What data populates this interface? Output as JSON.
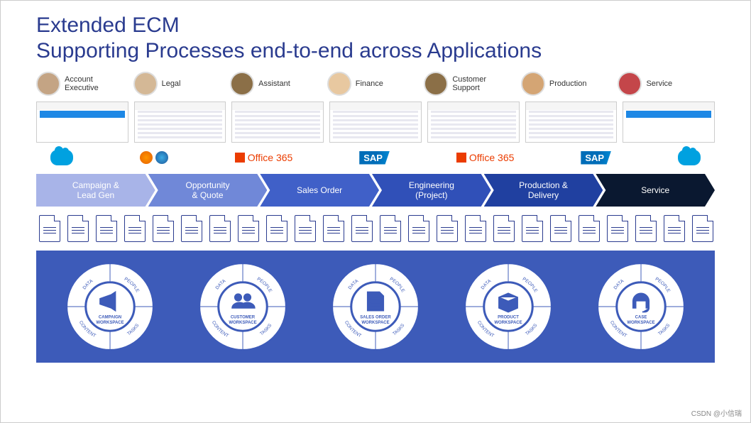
{
  "title": {
    "line1": "Extended ECM",
    "line2": "Supporting Processes end-to-end across Applications",
    "color": "#2a3b8f",
    "fontsize": 30
  },
  "personas": [
    {
      "label": "Account\nExecutive",
      "avatar_bg": "#c4a484"
    },
    {
      "label": "Legal",
      "avatar_bg": "#d4b896"
    },
    {
      "label": "Assistant",
      "avatar_bg": "#8b6f47"
    },
    {
      "label": "Finance",
      "avatar_bg": "#e8c8a0"
    },
    {
      "label": "Customer\nSupport",
      "avatar_bg": "#8b6f47"
    },
    {
      "label": "Production",
      "avatar_bg": "#d4a574"
    },
    {
      "label": "Service",
      "avatar_bg": "#c4464a"
    }
  ],
  "apps": [
    {
      "type": "salesforce",
      "label": ""
    },
    {
      "type": "browsers",
      "label": ""
    },
    {
      "type": "office365",
      "label": "Office 365"
    },
    {
      "type": "sap",
      "label": "SAP"
    },
    {
      "type": "office365",
      "label": "Office 365"
    },
    {
      "type": "sap",
      "label": "SAP"
    },
    {
      "type": "salesforce",
      "label": ""
    }
  ],
  "process_chevrons": [
    {
      "label": "Campaign &\nLead Gen",
      "color": "#a8b4e8"
    },
    {
      "label": "Opportunity\n& Quote",
      "color": "#7088d8"
    },
    {
      "label": "Sales Order",
      "color": "#4060c8"
    },
    {
      "label": "Engineering\n(Project)",
      "color": "#3050b8"
    },
    {
      "label": "Production &\nDelivery",
      "color": "#2040a0"
    },
    {
      "label": "Service",
      "color": "#0a1830"
    }
  ],
  "doc_icons_count": 24,
  "workspaces": {
    "background": "#3d5bb9",
    "ring_labels": [
      "DATA",
      "PEOPLE",
      "TASKS",
      "CONTENT"
    ],
    "items": [
      {
        "label": "CAMPAIGN\nWORKSPACE",
        "icon": "megaphone"
      },
      {
        "label": "CUSTOMER\nWORKSPACE",
        "icon": "people"
      },
      {
        "label": "SALES ORDER\nWORKSPACE",
        "icon": "document"
      },
      {
        "label": "PRODUCT\nWORKSPACE",
        "icon": "box"
      },
      {
        "label": "CASE\nWORKSPACE",
        "icon": "headset"
      }
    ]
  },
  "watermark": "CSDN @小信瑞"
}
